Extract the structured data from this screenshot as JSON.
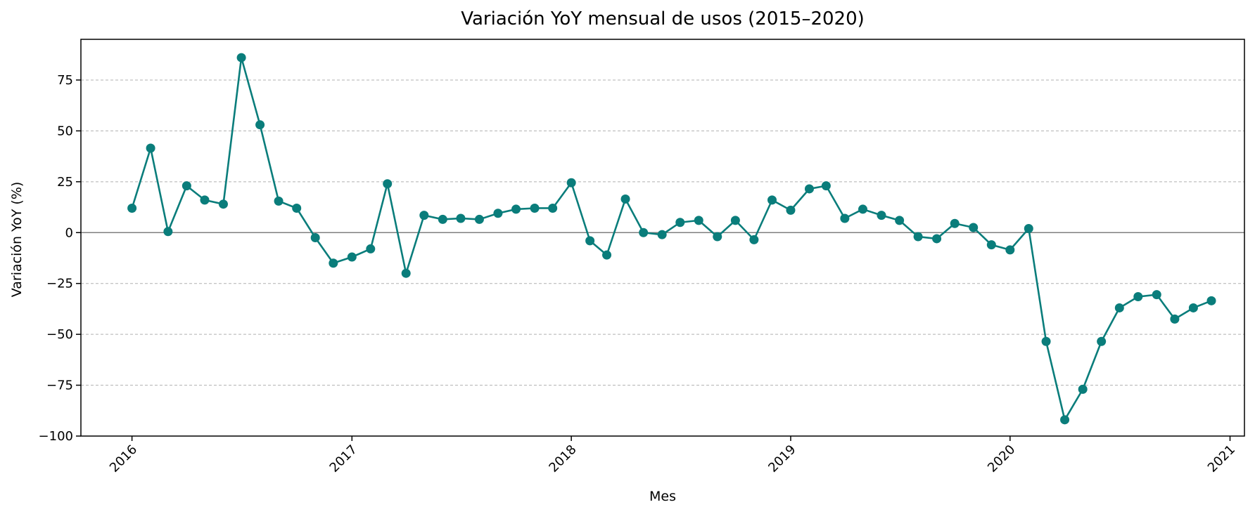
{
  "chart_data": {
    "type": "line",
    "title": "Variación YoY mensual de usos (2015–2020)",
    "xlabel": "Mes",
    "ylabel": "Variación YoY (%)",
    "ylim": [
      -100,
      95
    ],
    "xlim": [
      "2015-10-08",
      "2021-01-25"
    ],
    "yticks": [
      -100,
      -75,
      -50,
      -25,
      0,
      25,
      50,
      75
    ],
    "xticks": [
      "2016",
      "2017",
      "2018",
      "2019",
      "2020",
      "2021"
    ],
    "grid": "y",
    "color": "#0a7d7b",
    "zero_line_color": "#808080",
    "series": [
      {
        "x": [
          "2016-01",
          "2016-02",
          "2016-03",
          "2016-04",
          "2016-05",
          "2016-06",
          "2016-07",
          "2016-08",
          "2016-09",
          "2016-10",
          "2016-11",
          "2016-12",
          "2017-01",
          "2017-02",
          "2017-03",
          "2017-04",
          "2017-05",
          "2017-06",
          "2017-07",
          "2017-08",
          "2017-09",
          "2017-10",
          "2017-11",
          "2017-12",
          "2018-01",
          "2018-02",
          "2018-03",
          "2018-04",
          "2018-05",
          "2018-06",
          "2018-07",
          "2018-08",
          "2018-09",
          "2018-10",
          "2018-11",
          "2018-12",
          "2019-01",
          "2019-02",
          "2019-03",
          "2019-04",
          "2019-05",
          "2019-06",
          "2019-07",
          "2019-08",
          "2019-09",
          "2019-10",
          "2019-11",
          "2019-12",
          "2020-01",
          "2020-02",
          "2020-03",
          "2020-04",
          "2020-05",
          "2020-06",
          "2020-07",
          "2020-08",
          "2020-09",
          "2020-10",
          "2020-11",
          "2020-12"
        ],
        "values": [
          12,
          41.5,
          0.5,
          23,
          16,
          14,
          86,
          53,
          15.5,
          12,
          -2.5,
          -15,
          -12,
          -8,
          24,
          -20,
          8.5,
          6.5,
          7,
          6.5,
          9.5,
          11.5,
          12,
          12,
          24.5,
          -4,
          -11,
          16.5,
          0,
          -1,
          5,
          6,
          -2,
          6,
          -3.5,
          16,
          11,
          21.5,
          23,
          7,
          11.5,
          8.5,
          6,
          -2,
          -3,
          4.5,
          2.5,
          -6,
          -8.5,
          2,
          -53.5,
          -92,
          -77,
          -53.5,
          -37,
          -31.5,
          -30.5,
          -42.5,
          -37,
          -33.5
        ]
      }
    ]
  }
}
